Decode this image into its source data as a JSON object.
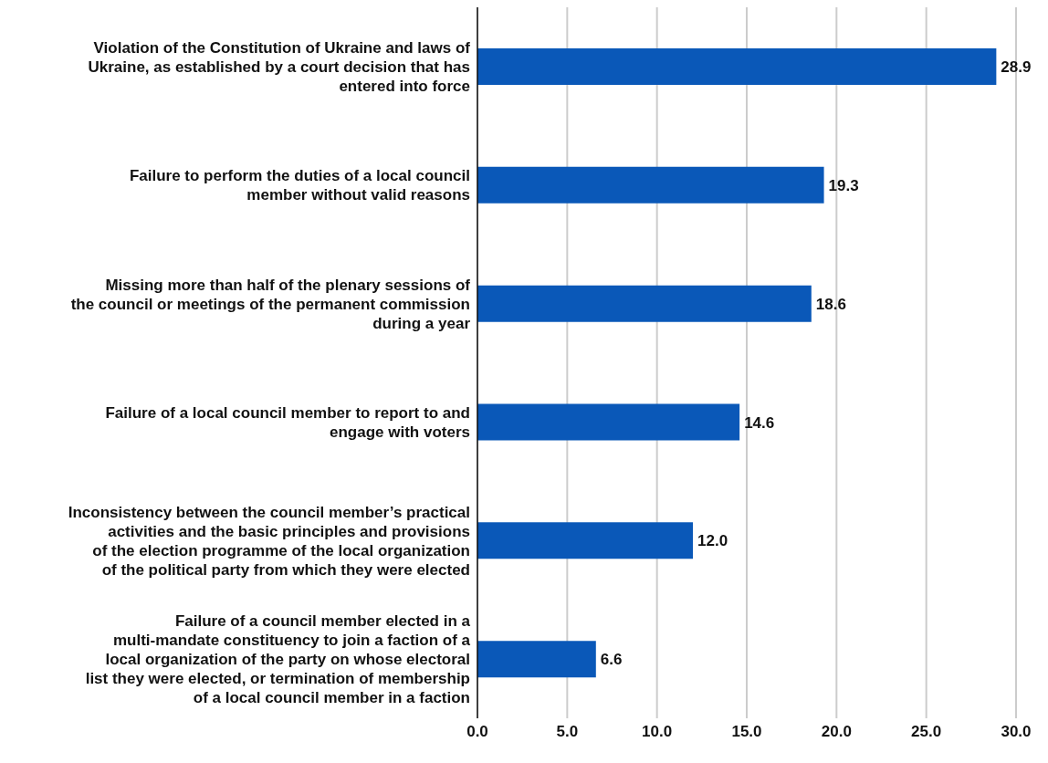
{
  "chart_data": {
    "type": "bar",
    "orientation": "horizontal",
    "categories": [
      "Violation of the Constitution of Ukraine and laws of Ukraine, as established by a court decision that has entered into force",
      "Failure to perform the duties of a local council member without valid reasons",
      "Missing more than half of the plenary sessions of the council or meetings of the permanent commission during a year",
      "Failure of a local council member to report to and engage with voters",
      "Inconsistency between the council member’s practical activities and the basic principles and provisions of the election programme of the local organization of the political party from which they were elected",
      "Failure of a council member elected in a multi-mandate constituency to join a faction of a local organization of the party on whose electoral list they were elected, or termination of membership of a local council member in a faction"
    ],
    "values": [
      28.9,
      19.3,
      18.6,
      14.6,
      12.0,
      6.6
    ],
    "color": "#0a58b8",
    "xlim": [
      0,
      30
    ],
    "xticks": [
      {
        "value": 0,
        "label": "0.0"
      },
      {
        "value": 5,
        "label": "5.0"
      },
      {
        "value": 10,
        "label": "10.0"
      },
      {
        "value": 15,
        "label": "15.0"
      },
      {
        "value": 20,
        "label": "20.0"
      },
      {
        "value": 25,
        "label": "25.0"
      },
      {
        "value": 30,
        "label": "30.0"
      }
    ],
    "value_labels": [
      "28.9",
      "19.3",
      "18.6",
      "14.6",
      "12.0",
      "6.6"
    ],
    "grid": "x"
  }
}
